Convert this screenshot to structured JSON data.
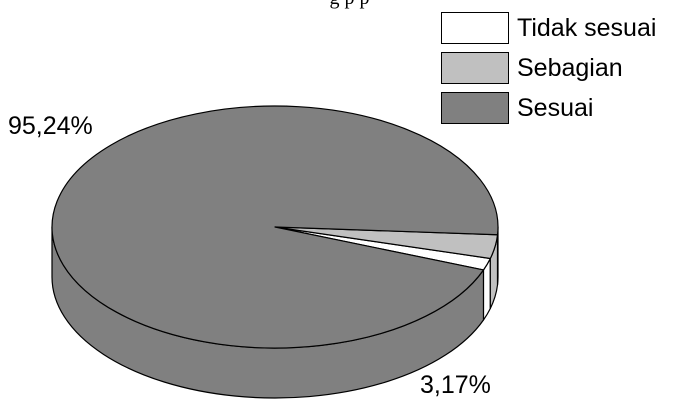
{
  "clipped_title": "g p                   p",
  "chart_data": {
    "type": "pie",
    "style": "3d",
    "categories": [
      "Tidak sesuai",
      "Sebagian",
      "Sesuai"
    ],
    "values": [
      1.59,
      3.17,
      95.24
    ],
    "colors": [
      "#ffffff",
      "#c0c0c0",
      "#808080"
    ],
    "legend_position": "top-right",
    "data_labels": [
      {
        "category": "Sesuai",
        "text": "95,24%"
      },
      {
        "category": "Sebagian",
        "text": "3,17%"
      }
    ]
  }
}
